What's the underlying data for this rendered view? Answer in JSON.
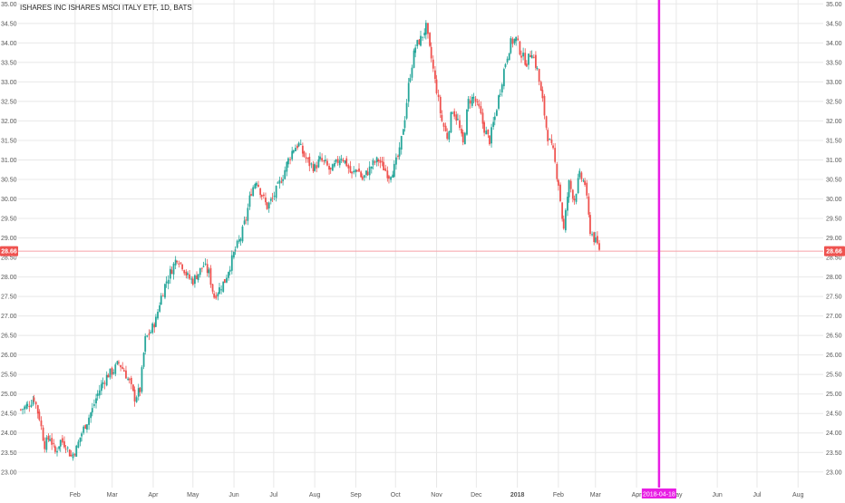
{
  "chart_title": "ISHARES INC ISHARES MSCI ITALY ETF, 1D, BATS",
  "colors": {
    "up": "#26a69a",
    "down": "#ef5350",
    "grid": "#e8e8e8",
    "axis_text": "#555555",
    "price_line": "#f6a0a8",
    "price_badge": "#ef5350",
    "marker": "#e81ee4",
    "marker_label": "#e81ee4"
  },
  "chart_data": {
    "type": "candlestick",
    "title": "ISHARES INC ISHARES MSCI ITALY ETF, 1D, BATS",
    "ylim": [
      22.6,
      35.1
    ],
    "y_ticks": [
      "23.00",
      "23.50",
      "24.00",
      "24.50",
      "25.00",
      "25.50",
      "26.00",
      "26.50",
      "27.00",
      "27.50",
      "28.00",
      "28.50",
      "29.00",
      "29.50",
      "30.00",
      "30.50",
      "31.00",
      "31.50",
      "32.00",
      "32.50",
      "33.00",
      "33.50",
      "34.00",
      "34.50",
      "35.00"
    ],
    "x_labels": [
      {
        "label": "Feb",
        "day": 31
      },
      {
        "label": "Mar",
        "day": 59
      },
      {
        "label": "Apr",
        "day": 90
      },
      {
        "label": "May",
        "day": 120
      },
      {
        "label": "Jun",
        "day": 151
      },
      {
        "label": "Jul",
        "day": 181
      },
      {
        "label": "Aug",
        "day": 212
      },
      {
        "label": "Sep",
        "day": 243
      },
      {
        "label": "Oct",
        "day": 273
      },
      {
        "label": "Nov",
        "day": 304
      },
      {
        "label": "Dec",
        "day": 334
      },
      {
        "label": "2018",
        "day": 365
      },
      {
        "label": "Feb",
        "day": 396
      },
      {
        "label": "Mar",
        "day": 424
      },
      {
        "label": "Apr",
        "day": 455
      },
      {
        "label": "May",
        "day": 485
      },
      {
        "label": "Jun",
        "day": 516
      },
      {
        "label": "Jul",
        "day": 546
      },
      {
        "label": "Aug",
        "day": 577
      }
    ],
    "x_range_days": [
      -12,
      596
    ],
    "current_price": "28.66",
    "current_price_value": 28.66,
    "marker_date_label": "2018-04-18",
    "marker_day": 472,
    "close_path": [
      [
        -10,
        24.6
      ],
      [
        -5,
        24.7
      ],
      [
        0,
        24.9
      ],
      [
        4,
        24.4
      ],
      [
        8,
        23.7
      ],
      [
        12,
        23.9
      ],
      [
        16,
        23.5
      ],
      [
        20,
        23.8
      ],
      [
        24,
        23.7
      ],
      [
        28,
        23.4
      ],
      [
        32,
        23.6
      ],
      [
        36,
        24.0
      ],
      [
        40,
        24.3
      ],
      [
        44,
        24.6
      ],
      [
        48,
        25.0
      ],
      [
        52,
        25.3
      ],
      [
        56,
        25.5
      ],
      [
        60,
        25.6
      ],
      [
        64,
        25.8
      ],
      [
        68,
        25.6
      ],
      [
        72,
        25.3
      ],
      [
        76,
        24.9
      ],
      [
        80,
        25.1
      ],
      [
        84,
        26.4
      ],
      [
        88,
        26.6
      ],
      [
        92,
        26.9
      ],
      [
        96,
        27.5
      ],
      [
        100,
        27.9
      ],
      [
        104,
        28.2
      ],
      [
        108,
        28.5
      ],
      [
        112,
        28.3
      ],
      [
        116,
        28.0
      ],
      [
        120,
        27.9
      ],
      [
        124,
        28.1
      ],
      [
        128,
        28.3
      ],
      [
        132,
        28.1
      ],
      [
        136,
        27.5
      ],
      [
        140,
        27.7
      ],
      [
        144,
        27.9
      ],
      [
        148,
        28.3
      ],
      [
        152,
        28.7
      ],
      [
        156,
        29.0
      ],
      [
        160,
        29.5
      ],
      [
        164,
        30.2
      ],
      [
        168,
        30.5
      ],
      [
        172,
        30.1
      ],
      [
        176,
        29.8
      ],
      [
        180,
        30.0
      ],
      [
        184,
        30.3
      ],
      [
        188,
        30.6
      ],
      [
        192,
        31.0
      ],
      [
        196,
        31.3
      ],
      [
        200,
        31.4
      ],
      [
        204,
        31.1
      ],
      [
        208,
        30.9
      ],
      [
        212,
        30.8
      ],
      [
        216,
        31.0
      ],
      [
        220,
        30.9
      ],
      [
        224,
        30.7
      ],
      [
        228,
        30.9
      ],
      [
        232,
        31.1
      ],
      [
        236,
        30.9
      ],
      [
        240,
        30.6
      ],
      [
        244,
        30.8
      ],
      [
        248,
        30.5
      ],
      [
        252,
        30.7
      ],
      [
        256,
        30.9
      ],
      [
        260,
        31.0
      ],
      [
        264,
        30.8
      ],
      [
        268,
        30.6
      ],
      [
        272,
        30.8
      ],
      [
        276,
        31.2
      ],
      [
        280,
        32.1
      ],
      [
        284,
        33.2
      ],
      [
        288,
        33.9
      ],
      [
        292,
        34.1
      ],
      [
        296,
        34.4
      ],
      [
        300,
        33.6
      ],
      [
        304,
        32.8
      ],
      [
        308,
        32.0
      ],
      [
        312,
        31.6
      ],
      [
        316,
        32.3
      ],
      [
        320,
        32.0
      ],
      [
        324,
        31.4
      ],
      [
        328,
        32.5
      ],
      [
        332,
        32.6
      ],
      [
        336,
        32.3
      ],
      [
        340,
        31.8
      ],
      [
        344,
        31.5
      ],
      [
        348,
        32.1
      ],
      [
        352,
        32.8
      ],
      [
        356,
        33.5
      ],
      [
        360,
        34.0
      ],
      [
        364,
        34.1
      ],
      [
        368,
        33.7
      ],
      [
        372,
        33.5
      ],
      [
        376,
        33.8
      ],
      [
        380,
        33.3
      ],
      [
        384,
        32.5
      ],
      [
        388,
        31.6
      ],
      [
        392,
        31.2
      ],
      [
        396,
        30.4
      ],
      [
        400,
        29.2
      ],
      [
        404,
        30.4
      ],
      [
        408,
        30.0
      ],
      [
        412,
        30.6
      ],
      [
        416,
        30.4
      ],
      [
        420,
        29.2
      ],
      [
        424,
        28.9
      ],
      [
        428,
        28.66
      ]
    ],
    "marker_label_note": ""
  }
}
